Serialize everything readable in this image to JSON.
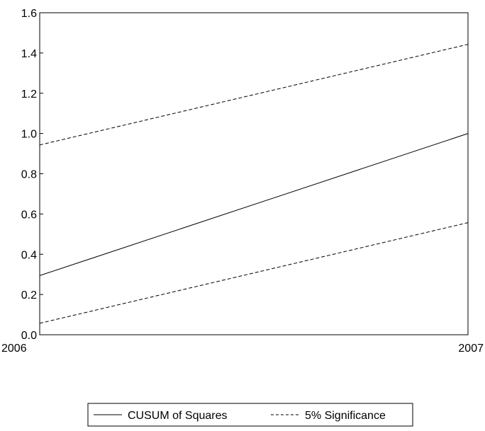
{
  "chart_data": {
    "type": "line",
    "x": [
      "2006",
      "2007"
    ],
    "series": [
      {
        "name": "CUSUM of Squares",
        "values": [
          0.294,
          1.0
        ],
        "style": "solid"
      },
      {
        "name": "5% Significance",
        "values": [
          0.943,
          1.443
        ],
        "style": "dashed"
      },
      {
        "name": "5% Significance",
        "values": [
          0.057,
          0.557
        ],
        "style": "dashed"
      }
    ],
    "yticks": [
      "0.0",
      "0.2",
      "0.4",
      "0.6",
      "0.8",
      "1.0",
      "1.2",
      "1.4",
      "1.6"
    ],
    "xticks": [
      "2006",
      "2007"
    ],
    "ylim": [
      0.0,
      1.6
    ],
    "grid": false,
    "legend": {
      "placement": "bottom-center",
      "entries": [
        {
          "label": "CUSUM of Squares",
          "style": "solid"
        },
        {
          "label": "5% Significance",
          "style": "dashed"
        }
      ]
    },
    "colors": {
      "line": "#000000",
      "background": "#ffffff"
    }
  }
}
